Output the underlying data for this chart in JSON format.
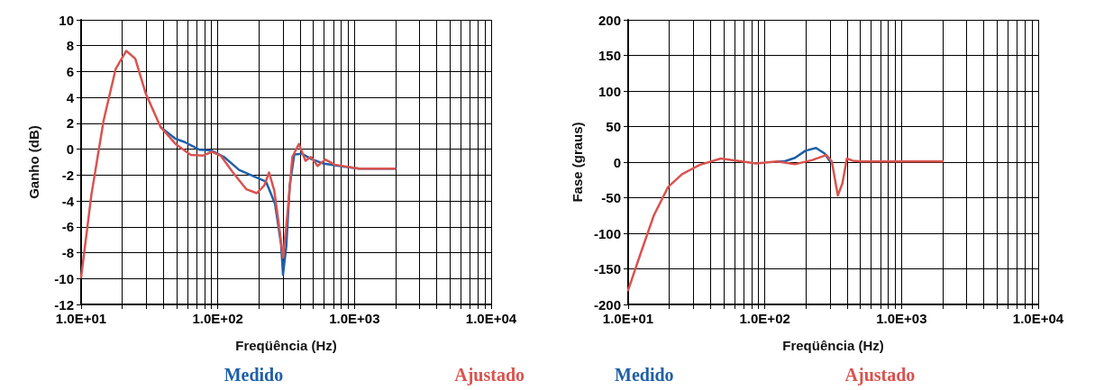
{
  "chart_data": [
    {
      "type": "line",
      "xlabel": "Freqüência (Hz)",
      "ylabel": "Ganho (dB)",
      "log": "x",
      "grid": true,
      "legend": "bottom right",
      "marker": "none",
      "line_style": "solid",
      "xlim": [
        10,
        10000
      ],
      "xticks": [
        {
          "value": 10,
          "label": "1.0E+01"
        },
        {
          "value": 20,
          "label": null
        },
        {
          "value": 30,
          "label": null
        },
        {
          "value": 40,
          "label": null
        },
        {
          "value": 50,
          "label": null
        },
        {
          "value": 60,
          "label": null
        },
        {
          "value": 70,
          "label": null
        },
        {
          "value": 80,
          "label": null
        },
        {
          "value": 90,
          "label": null
        },
        {
          "value": 100,
          "label": "1.0E+02"
        },
        {
          "value": 200,
          "label": null
        },
        {
          "value": 300,
          "label": null
        },
        {
          "value": 400,
          "label": null
        },
        {
          "value": 500,
          "label": null
        },
        {
          "value": 600,
          "label": null
        },
        {
          "value": 700,
          "label": null
        },
        {
          "value": 800,
          "label": null
        },
        {
          "value": 900,
          "label": null
        },
        {
          "value": 1000,
          "label": "1.0E+03"
        },
        {
          "value": 2000,
          "label": null
        },
        {
          "value": 3000,
          "label": null
        },
        {
          "value": 4000,
          "label": null
        },
        {
          "value": 5000,
          "label": null
        },
        {
          "value": 6000,
          "label": null
        },
        {
          "value": 7000,
          "label": null
        },
        {
          "value": 8000,
          "label": null
        },
        {
          "value": 9000,
          "label": null
        },
        {
          "value": 10000,
          "label": "1.0E+04"
        }
      ],
      "ylim": [
        -12,
        10
      ],
      "yticks": [
        -12,
        -10,
        -8,
        -6,
        -4,
        -2,
        0,
        2,
        4,
        6,
        8,
        10
      ],
      "series": [
        {
          "name": "Medido",
          "color": "#1f5fa8",
          "x": [
            38.2,
            49.2,
            57.3,
            73.8,
            90,
            111,
            143,
            184,
            225,
            262,
            290,
            300,
            317,
            336,
            363,
            412,
            480,
            587,
            837,
            1080,
            1980
          ],
          "values": [
            1.7,
            0.8,
            0.55,
            -0.05,
            -0.1,
            -0.6,
            -1.6,
            -2.1,
            -2.5,
            -4.2,
            -7.3,
            -9.7,
            -7.5,
            -2.8,
            -0.4,
            -0.35,
            -0.75,
            -1.1,
            -1.35,
            -1.5,
            -1.5
          ]
        },
        {
          "name": "Ajustado",
          "color": "#d9534f",
          "x": [
            10,
            11.9,
            14.6,
            17.9,
            21.4,
            24.9,
            29.7,
            38.2,
            49.2,
            63.4,
            77.6,
            90.4,
            105,
            129,
            162,
            193,
            219,
            237,
            259,
            282,
            300,
            324,
            351,
            392,
            438,
            480,
            537,
            612,
            719,
            1080,
            1980
          ],
          "values": [
            -9.9,
            -3.5,
            2.2,
            6.2,
            7.6,
            7.0,
            4.3,
            1.7,
            0.4,
            -0.45,
            -0.5,
            -0.2,
            -0.5,
            -1.8,
            -3.1,
            -3.4,
            -2.8,
            -1.8,
            -3.2,
            -6.1,
            -8.4,
            -4.9,
            -0.6,
            0.4,
            -0.9,
            -0.6,
            -1.3,
            -0.8,
            -1.2,
            -1.5,
            -1.5
          ]
        }
      ]
    },
    {
      "type": "line",
      "xlabel": "Freqüência (Hz)",
      "ylabel": "Fase (graus)",
      "log": "x",
      "grid": true,
      "legend": "bottom left",
      "marker": "none",
      "line_style": "solid",
      "xlim": [
        10,
        10000
      ],
      "xticks": [
        {
          "value": 10,
          "label": "1.0E+01"
        },
        {
          "value": 20,
          "label": null
        },
        {
          "value": 30,
          "label": null
        },
        {
          "value": 40,
          "label": null
        },
        {
          "value": 50,
          "label": null
        },
        {
          "value": 60,
          "label": null
        },
        {
          "value": 70,
          "label": null
        },
        {
          "value": 80,
          "label": null
        },
        {
          "value": 90,
          "label": null
        },
        {
          "value": 100,
          "label": "1.0E+02"
        },
        {
          "value": 200,
          "label": null
        },
        {
          "value": 300,
          "label": null
        },
        {
          "value": 400,
          "label": null
        },
        {
          "value": 500,
          "label": null
        },
        {
          "value": 600,
          "label": null
        },
        {
          "value": 700,
          "label": null
        },
        {
          "value": 800,
          "label": null
        },
        {
          "value": 900,
          "label": null
        },
        {
          "value": 1000,
          "label": "1.0E+03"
        },
        {
          "value": 2000,
          "label": null
        },
        {
          "value": 3000,
          "label": null
        },
        {
          "value": 4000,
          "label": null
        },
        {
          "value": 5000,
          "label": null
        },
        {
          "value": 6000,
          "label": null
        },
        {
          "value": 7000,
          "label": null
        },
        {
          "value": 8000,
          "label": null
        },
        {
          "value": 9000,
          "label": null
        },
        {
          "value": 10000,
          "label": "1.0E+04"
        }
      ],
      "ylim": [
        -200,
        200
      ],
      "yticks": [
        -200,
        -150,
        -100,
        -50,
        0,
        50,
        100,
        150,
        200
      ],
      "series": [
        {
          "name": "Medido",
          "color": "#1f5fa8",
          "x": [
            123,
            139,
            166,
            198,
            237,
            274,
            300
          ],
          "values": [
            1,
            1,
            6,
            16,
            20,
            12,
            1
          ]
        },
        {
          "name": "Ajustado",
          "color": "#d9534f",
          "x": [
            10,
            12.2,
            15.4,
            19.6,
            24.8,
            33.3,
            47.6,
            68,
            86,
            123,
            166,
            223,
            282,
            309,
            342,
            369,
            398,
            440,
            511,
            1321,
            2000
          ],
          "values": [
            -180,
            -131,
            -75,
            -35,
            -17,
            -4,
            5,
            1,
            -2,
            1,
            -3,
            3,
            10,
            1,
            -47,
            -30,
            5,
            2,
            1,
            1,
            1
          ]
        }
      ]
    }
  ]
}
